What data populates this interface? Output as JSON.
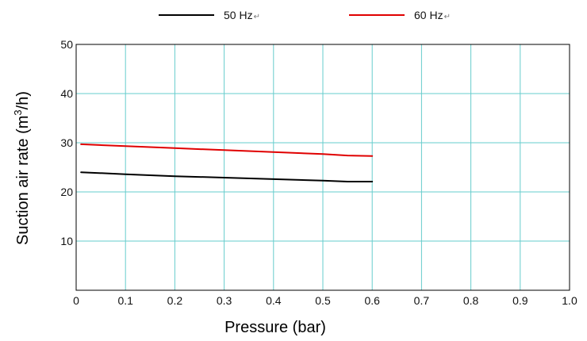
{
  "chart_data": {
    "type": "line",
    "title": "",
    "xlabel": "Pressure (bar)",
    "ylabel_main": "Suction air rate (m",
    "ylabel_sup": "3",
    "ylabel_tail": "/h)",
    "xlim": [
      0,
      1.0
    ],
    "ylim": [
      0,
      50
    ],
    "x_ticks": [
      0,
      0.1,
      0.2,
      0.3,
      0.4,
      0.5,
      0.6,
      0.7,
      0.8,
      0.9,
      1.0
    ],
    "x_tick_labels": [
      "0",
      "0.1",
      "0.2",
      "0.3",
      "0.4",
      "0.5",
      "0.6",
      "0.7",
      "0.8",
      "0.9",
      "1.0"
    ],
    "y_ticks": [
      10,
      20,
      30,
      40,
      50
    ],
    "y_tick_labels": [
      "10",
      "20",
      "30",
      "40",
      "50"
    ],
    "grid": true,
    "grid_color": "#66cccc",
    "legend_position": "top",
    "series": [
      {
        "name": "50 Hz",
        "color": "#000000",
        "x": [
          0.01,
          0.1,
          0.2,
          0.3,
          0.4,
          0.5,
          0.55,
          0.6
        ],
        "y": [
          24.0,
          23.6,
          23.2,
          22.9,
          22.6,
          22.3,
          22.1,
          22.1
        ]
      },
      {
        "name": "60 Hz",
        "color": "#e00000",
        "x": [
          0.01,
          0.1,
          0.2,
          0.3,
          0.4,
          0.5,
          0.55,
          0.6
        ],
        "y": [
          29.7,
          29.3,
          28.9,
          28.5,
          28.1,
          27.7,
          27.4,
          27.3
        ]
      }
    ]
  },
  "legend_marker": "↵"
}
